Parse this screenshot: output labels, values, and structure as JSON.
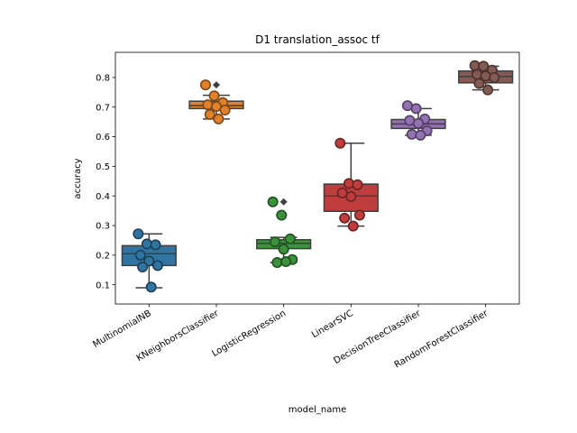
{
  "chart_data": {
    "type": "box",
    "title": "D1 translation_assoc tf",
    "xlabel": "model_name",
    "ylabel": "accuracy",
    "ylim": [
      0.035,
      0.885
    ],
    "yticks": [
      0.1,
      0.2,
      0.3,
      0.4,
      0.5,
      0.6,
      0.7,
      0.8
    ],
    "grid": false,
    "legend": "none",
    "categories": [
      "MultinomialNB",
      "KNeighborsClassifier",
      "LogisticRegression",
      "LinearSVC",
      "DecisionTreeClassifier",
      "RandomForestClassifier"
    ],
    "colors": [
      "#3274a1",
      "#e1812c",
      "#3a923a",
      "#c03d3e",
      "#9372b2",
      "#845b53"
    ],
    "boxes": [
      {
        "whisker_low": 0.09,
        "q1": 0.165,
        "median": 0.205,
        "q3": 0.232,
        "whisker_high": 0.272
      },
      {
        "whisker_low": 0.66,
        "q1": 0.695,
        "median": 0.705,
        "q3": 0.72,
        "whisker_high": 0.74
      },
      {
        "whisker_low": 0.175,
        "q1": 0.222,
        "median": 0.24,
        "q3": 0.252,
        "whisker_high": 0.26
      },
      {
        "whisker_low": 0.298,
        "q1": 0.348,
        "median": 0.4,
        "q3": 0.44,
        "whisker_high": 0.578
      },
      {
        "whisker_low": 0.605,
        "q1": 0.628,
        "median": 0.643,
        "q3": 0.658,
        "whisker_high": 0.695
      },
      {
        "whisker_low": 0.758,
        "q1": 0.782,
        "median": 0.803,
        "q3": 0.822,
        "whisker_high": 0.838
      }
    ],
    "outliers": [
      [],
      [
        0.775
      ],
      [
        0.38,
        0.335
      ],
      [],
      [],
      []
    ],
    "points": [
      [
        0.272,
        0.238,
        0.235,
        0.2,
        0.18,
        0.165,
        0.16,
        0.092
      ],
      [
        0.775,
        0.738,
        0.715,
        0.708,
        0.702,
        0.69,
        0.675,
        0.66
      ],
      [
        0.38,
        0.335,
        0.255,
        0.245,
        0.22,
        0.185,
        0.175,
        0.178
      ],
      [
        0.578,
        0.442,
        0.438,
        0.41,
        0.398,
        0.335,
        0.325,
        0.298
      ],
      [
        0.705,
        0.695,
        0.66,
        0.655,
        0.645,
        0.62,
        0.608,
        0.605
      ],
      [
        0.84,
        0.838,
        0.825,
        0.81,
        0.805,
        0.8,
        0.78,
        0.758
      ]
    ]
  }
}
